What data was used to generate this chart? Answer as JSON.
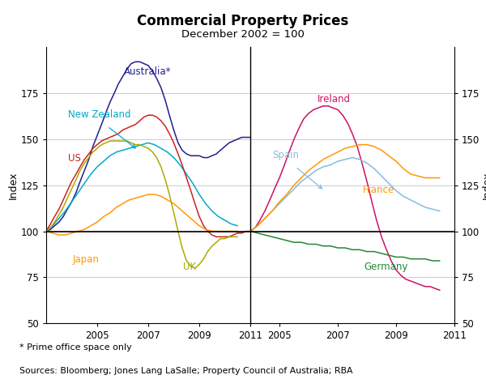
{
  "title": "Commercial Property Prices",
  "subtitle": "December 2002 = 100",
  "ylabel_left": "Index",
  "ylabel_right": "Index",
  "footnote": "* Prime office space only",
  "source": "Sources: Bloomberg; Jones Lang LaSalle; Property Council of Australia; RBA",
  "ylim": [
    50,
    200
  ],
  "yticks": [
    50,
    75,
    100,
    125,
    150,
    175
  ],
  "left_panel": {
    "xlim": [
      2003.0,
      2011.0
    ],
    "xticks": [
      2005,
      2007,
      2009,
      2011
    ],
    "xtick_labels": [
      "2005",
      "2007",
      "2009",
      "2011"
    ],
    "series": {
      "Australia": {
        "color": "#1f1f8f",
        "x": [
          2003.0,
          2003.17,
          2003.33,
          2003.5,
          2003.67,
          2003.83,
          2004.0,
          2004.17,
          2004.33,
          2004.5,
          2004.67,
          2004.83,
          2005.0,
          2005.17,
          2005.33,
          2005.5,
          2005.67,
          2005.83,
          2006.0,
          2006.17,
          2006.33,
          2006.5,
          2006.67,
          2006.83,
          2007.0,
          2007.17,
          2007.33,
          2007.5,
          2007.67,
          2007.83,
          2008.0,
          2008.17,
          2008.33,
          2008.5,
          2008.67,
          2008.83,
          2009.0,
          2009.17,
          2009.33,
          2009.5,
          2009.67,
          2009.83,
          2010.0,
          2010.17,
          2010.33,
          2010.5,
          2010.67,
          2010.83,
          2011.0
        ],
        "y": [
          100,
          101,
          103,
          105,
          108,
          112,
          116,
          121,
          127,
          133,
          139,
          146,
          152,
          158,
          164,
          170,
          175,
          180,
          184,
          188,
          191,
          192,
          192,
          191,
          190,
          187,
          183,
          178,
          171,
          163,
          155,
          148,
          144,
          142,
          141,
          141,
          141,
          140,
          140,
          141,
          142,
          144,
          146,
          148,
          149,
          150,
          151,
          151,
          151
        ]
      },
      "New Zealand": {
        "color": "#00aacc",
        "x": [
          2003.0,
          2003.25,
          2003.5,
          2003.75,
          2004.0,
          2004.25,
          2004.5,
          2004.75,
          2005.0,
          2005.25,
          2005.5,
          2005.75,
          2006.0,
          2006.25,
          2006.5,
          2006.75,
          2007.0,
          2007.25,
          2007.5,
          2007.75,
          2008.0,
          2008.25,
          2008.5,
          2008.75,
          2009.0,
          2009.25,
          2009.5,
          2009.75,
          2010.0,
          2010.25,
          2010.5
        ],
        "y": [
          100,
          103,
          107,
          111,
          116,
          121,
          126,
          131,
          135,
          138,
          141,
          143,
          144,
          145,
          146,
          147,
          148,
          147,
          145,
          143,
          140,
          136,
          131,
          126,
          120,
          115,
          111,
          108,
          106,
          104,
          103
        ]
      },
      "US": {
        "color": "#cc2222",
        "x": [
          2003.0,
          2003.17,
          2003.33,
          2003.5,
          2003.67,
          2003.83,
          2004.0,
          2004.17,
          2004.33,
          2004.5,
          2004.67,
          2004.83,
          2005.0,
          2005.17,
          2005.33,
          2005.5,
          2005.67,
          2005.83,
          2006.0,
          2006.17,
          2006.33,
          2006.5,
          2006.67,
          2006.83,
          2007.0,
          2007.17,
          2007.33,
          2007.5,
          2007.67,
          2007.83,
          2008.0,
          2008.17,
          2008.33,
          2008.5,
          2008.67,
          2008.83,
          2009.0,
          2009.17,
          2009.33,
          2009.5,
          2009.67,
          2009.83,
          2010.0,
          2010.17,
          2010.33,
          2010.5,
          2010.67,
          2010.83,
          2011.0
        ],
        "y": [
          100,
          104,
          108,
          112,
          117,
          122,
          127,
          131,
          135,
          139,
          142,
          145,
          147,
          149,
          150,
          151,
          152,
          153,
          155,
          156,
          157,
          158,
          160,
          162,
          163,
          163,
          162,
          160,
          157,
          153,
          148,
          142,
          136,
          129,
          122,
          115,
          108,
          103,
          100,
          98,
          97,
          97,
          97,
          97,
          98,
          99,
          99,
          100,
          100
        ]
      },
      "Japan": {
        "color": "#ff9900",
        "x": [
          2003.0,
          2003.25,
          2003.5,
          2003.75,
          2004.0,
          2004.25,
          2004.5,
          2004.75,
          2005.0,
          2005.25,
          2005.5,
          2005.75,
          2006.0,
          2006.25,
          2006.5,
          2006.75,
          2007.0,
          2007.25,
          2007.5,
          2007.75,
          2008.0,
          2008.25,
          2008.5,
          2008.75,
          2009.0,
          2009.25,
          2009.5,
          2009.75,
          2010.0,
          2010.25,
          2010.5
        ],
        "y": [
          100,
          99,
          98,
          98,
          99,
          100,
          101,
          103,
          105,
          108,
          110,
          113,
          115,
          117,
          118,
          119,
          120,
          120,
          119,
          117,
          115,
          112,
          109,
          106,
          103,
          101,
          100,
          100,
          100,
          100,
          100
        ]
      },
      "UK": {
        "color": "#aaaa00",
        "x": [
          2003.0,
          2003.17,
          2003.33,
          2003.5,
          2003.67,
          2003.83,
          2004.0,
          2004.17,
          2004.33,
          2004.5,
          2004.67,
          2004.83,
          2005.0,
          2005.17,
          2005.33,
          2005.5,
          2005.67,
          2005.83,
          2006.0,
          2006.17,
          2006.33,
          2006.5,
          2006.67,
          2006.83,
          2007.0,
          2007.17,
          2007.33,
          2007.5,
          2007.67,
          2007.83,
          2008.0,
          2008.17,
          2008.33,
          2008.5,
          2008.67,
          2008.83,
          2009.0,
          2009.17,
          2009.33,
          2009.5,
          2009.67,
          2009.83,
          2010.0,
          2010.17,
          2010.33,
          2010.5
        ],
        "y": [
          100,
          102,
          105,
          109,
          113,
          118,
          123,
          128,
          133,
          137,
          140,
          143,
          145,
          147,
          148,
          149,
          149,
          149,
          149,
          149,
          148,
          147,
          147,
          146,
          145,
          143,
          140,
          135,
          128,
          120,
          110,
          100,
          91,
          84,
          81,
          80,
          82,
          85,
          89,
          92,
          94,
          96,
          96,
          97,
          97,
          97
        ]
      }
    }
  },
  "right_panel": {
    "xlim": [
      2004.0,
      2011.0
    ],
    "xticks": [
      2005,
      2007,
      2009,
      2011
    ],
    "xtick_labels": [
      "2005",
      "2007",
      "2009",
      "2011"
    ],
    "series": {
      "Ireland": {
        "color": "#cc1166",
        "x": [
          2004.0,
          2004.17,
          2004.33,
          2004.5,
          2004.67,
          2004.83,
          2005.0,
          2005.17,
          2005.33,
          2005.5,
          2005.67,
          2005.83,
          2006.0,
          2006.17,
          2006.33,
          2006.5,
          2006.67,
          2006.83,
          2007.0,
          2007.17,
          2007.33,
          2007.5,
          2007.67,
          2007.83,
          2008.0,
          2008.17,
          2008.33,
          2008.5,
          2008.67,
          2008.83,
          2009.0,
          2009.17,
          2009.33,
          2009.5,
          2009.67,
          2009.83,
          2010.0,
          2010.17,
          2010.33,
          2010.5
        ],
        "y": [
          100,
          102,
          106,
          111,
          117,
          123,
          129,
          136,
          143,
          150,
          156,
          161,
          164,
          166,
          167,
          168,
          168,
          167,
          166,
          163,
          159,
          153,
          146,
          137,
          127,
          116,
          106,
          97,
          90,
          84,
          79,
          76,
          74,
          73,
          72,
          71,
          70,
          70,
          69,
          68
        ]
      },
      "Spain": {
        "color": "#88bbdd",
        "x": [
          2004.0,
          2004.25,
          2004.5,
          2004.75,
          2005.0,
          2005.25,
          2005.5,
          2005.75,
          2006.0,
          2006.25,
          2006.5,
          2006.75,
          2007.0,
          2007.25,
          2007.5,
          2007.75,
          2008.0,
          2008.25,
          2008.5,
          2008.75,
          2009.0,
          2009.25,
          2009.5,
          2009.75,
          2010.0,
          2010.25,
          2010.5
        ],
        "y": [
          100,
          103,
          107,
          111,
          115,
          119,
          123,
          127,
          130,
          133,
          135,
          136,
          138,
          139,
          140,
          139,
          137,
          134,
          130,
          126,
          122,
          119,
          117,
          115,
          113,
          112,
          111
        ]
      },
      "France": {
        "color": "#ff9900",
        "x": [
          2004.0,
          2004.25,
          2004.5,
          2004.75,
          2005.0,
          2005.25,
          2005.5,
          2005.75,
          2006.0,
          2006.25,
          2006.5,
          2006.75,
          2007.0,
          2007.25,
          2007.5,
          2007.75,
          2008.0,
          2008.25,
          2008.5,
          2008.75,
          2009.0,
          2009.25,
          2009.5,
          2009.75,
          2010.0,
          2010.25,
          2010.5
        ],
        "y": [
          100,
          103,
          107,
          111,
          116,
          120,
          125,
          129,
          133,
          136,
          139,
          141,
          143,
          145,
          146,
          147,
          147,
          146,
          144,
          141,
          138,
          134,
          131,
          130,
          129,
          129,
          129
        ]
      },
      "Germany": {
        "color": "#228833",
        "x": [
          2004.0,
          2004.25,
          2004.5,
          2004.75,
          2005.0,
          2005.25,
          2005.5,
          2005.75,
          2006.0,
          2006.25,
          2006.5,
          2006.75,
          2007.0,
          2007.25,
          2007.5,
          2007.75,
          2008.0,
          2008.25,
          2008.5,
          2008.75,
          2009.0,
          2009.25,
          2009.5,
          2009.75,
          2010.0,
          2010.25,
          2010.5
        ],
        "y": [
          100,
          99,
          98,
          97,
          96,
          95,
          94,
          94,
          93,
          93,
          92,
          92,
          91,
          91,
          90,
          90,
          89,
          89,
          88,
          87,
          86,
          86,
          85,
          85,
          85,
          84,
          84
        ]
      }
    }
  }
}
